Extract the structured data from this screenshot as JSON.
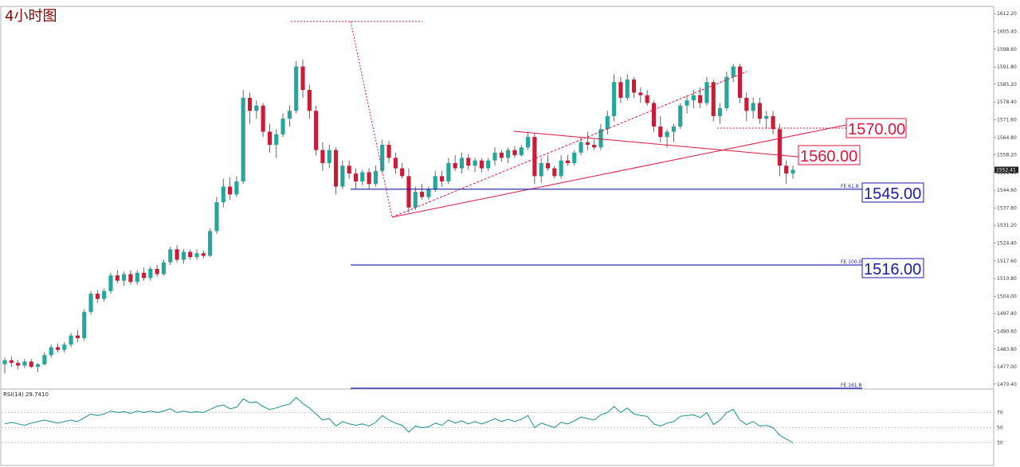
{
  "chart_data": {
    "type": "candlestick",
    "title": "4小时图",
    "ylim": [
      1468.5,
      1615.0
    ],
    "yticks": [
      "1612.20",
      "1605.40",
      "1598.60",
      "1591.80",
      "1585.20",
      "1578.40",
      "1571.60",
      "1564.80",
      "1558.20",
      "1551.40",
      "1544.60",
      "1537.80",
      "1531.20",
      "1524.40",
      "1517.60",
      "1510.80",
      "1504.00",
      "1497.40",
      "1490.60",
      "1483.80",
      "1477.00",
      "1470.40"
    ],
    "current_price": "1552.41",
    "ohlc": [
      [
        1478.0,
        1480.5,
        1474.5,
        1479.5
      ],
      [
        1479.5,
        1481.0,
        1477.0,
        1478.5
      ],
      [
        1478.5,
        1479.5,
        1476.0,
        1477.5
      ],
      [
        1477.5,
        1480.0,
        1476.5,
        1479.0
      ],
      [
        1479.0,
        1480.0,
        1476.5,
        1477.0
      ],
      [
        1477.0,
        1478.5,
        1475.0,
        1478.0
      ],
      [
        1478.0,
        1482.5,
        1477.5,
        1481.5
      ],
      [
        1481.5,
        1485.5,
        1480.5,
        1484.5
      ],
      [
        1484.5,
        1486.0,
        1482.5,
        1483.5
      ],
      [
        1483.5,
        1486.5,
        1482.5,
        1485.5
      ],
      [
        1485.5,
        1490.0,
        1484.5,
        1489.0
      ],
      [
        1489.0,
        1491.0,
        1486.5,
        1488.0
      ],
      [
        1488.0,
        1499.0,
        1487.0,
        1498.0
      ],
      [
        1498.0,
        1506.0,
        1497.0,
        1505.0
      ],
      [
        1505.0,
        1506.5,
        1501.5,
        1503.0
      ],
      [
        1503.0,
        1507.0,
        1502.0,
        1506.0
      ],
      [
        1506.0,
        1513.0,
        1505.0,
        1512.0
      ],
      [
        1512.0,
        1514.0,
        1509.0,
        1510.0
      ],
      [
        1510.0,
        1513.5,
        1508.0,
        1512.5
      ],
      [
        1512.5,
        1514.0,
        1508.5,
        1509.5
      ],
      [
        1509.5,
        1514.0,
        1508.5,
        1513.0
      ],
      [
        1513.0,
        1515.0,
        1510.0,
        1511.0
      ],
      [
        1511.0,
        1515.5,
        1510.0,
        1514.5
      ],
      [
        1514.5,
        1516.0,
        1511.5,
        1512.5
      ],
      [
        1512.5,
        1518.0,
        1512.0,
        1517.0
      ],
      [
        1517.0,
        1523.0,
        1516.0,
        1522.0
      ],
      [
        1522.0,
        1523.5,
        1517.0,
        1518.0
      ],
      [
        1518.0,
        1522.0,
        1516.5,
        1521.0
      ],
      [
        1521.0,
        1522.0,
        1518.0,
        1519.0
      ],
      [
        1519.0,
        1522.0,
        1518.0,
        1520.5
      ],
      [
        1520.5,
        1521.5,
        1518.5,
        1519.5
      ],
      [
        1519.5,
        1530.0,
        1519.0,
        1529.0
      ],
      [
        1529.0,
        1542.0,
        1528.0,
        1540.0
      ],
      [
        1540.0,
        1549.0,
        1538.0,
        1546.0
      ],
      [
        1546.0,
        1549.5,
        1541.0,
        1543.0
      ],
      [
        1543.0,
        1550.0,
        1542.0,
        1548.0
      ],
      [
        1548.0,
        1583.0,
        1547.0,
        1580.0
      ],
      [
        1580.0,
        1582.0,
        1570.0,
        1575.0
      ],
      [
        1575.0,
        1579.0,
        1572.0,
        1577.0
      ],
      [
        1577.0,
        1578.0,
        1565.0,
        1567.0
      ],
      [
        1567.0,
        1570.0,
        1559.0,
        1562.0
      ],
      [
        1562.0,
        1568.0,
        1557.0,
        1566.0
      ],
      [
        1566.0,
        1574.0,
        1565.0,
        1572.0
      ],
      [
        1572.0,
        1577.0,
        1569.0,
        1575.0
      ],
      [
        1575.0,
        1594.0,
        1574.0,
        1592.0
      ],
      [
        1592.0,
        1594.5,
        1580.0,
        1583.0
      ],
      [
        1583.0,
        1585.0,
        1572.0,
        1575.0
      ],
      [
        1575.0,
        1577.0,
        1558.0,
        1560.0
      ],
      [
        1560.0,
        1563.0,
        1552.0,
        1555.0
      ],
      [
        1555.0,
        1562.0,
        1553.0,
        1560.0
      ],
      [
        1560.0,
        1561.0,
        1543.0,
        1546.0
      ],
      [
        1546.0,
        1556.0,
        1545.0,
        1554.0
      ],
      [
        1554.0,
        1556.0,
        1549.0,
        1551.0
      ],
      [
        1551.0,
        1553.0,
        1545.0,
        1548.0
      ],
      [
        1548.0,
        1552.5,
        1546.5,
        1551.5
      ],
      [
        1551.5,
        1553.0,
        1545.0,
        1547.0
      ],
      [
        1547.0,
        1554.0,
        1546.0,
        1552.0
      ],
      [
        1552.0,
        1564.0,
        1551.0,
        1562.0
      ],
      [
        1562.0,
        1563.5,
        1555.0,
        1557.0
      ],
      [
        1557.0,
        1559.0,
        1551.0,
        1553.0
      ],
      [
        1553.0,
        1555.0,
        1549.0,
        1550.0
      ],
      [
        1550.0,
        1553.0,
        1536.0,
        1538.0
      ],
      [
        1538.0,
        1546.0,
        1537.0,
        1544.0
      ],
      [
        1544.0,
        1547.0,
        1541.0,
        1542.0
      ],
      [
        1542.0,
        1546.0,
        1541.0,
        1545.0
      ],
      [
        1545.0,
        1552.0,
        1544.0,
        1550.0
      ],
      [
        1550.0,
        1552.0,
        1546.0,
        1548.0
      ],
      [
        1548.0,
        1557.0,
        1547.0,
        1555.0
      ],
      [
        1555.0,
        1558.0,
        1552.0,
        1553.0
      ],
      [
        1553.0,
        1559.0,
        1551.0,
        1557.0
      ],
      [
        1557.0,
        1558.5,
        1552.5,
        1554.0
      ],
      [
        1554.0,
        1557.0,
        1551.5,
        1556.0
      ],
      [
        1556.0,
        1557.0,
        1551.5,
        1553.0
      ],
      [
        1553.0,
        1557.0,
        1552.0,
        1556.0
      ],
      [
        1556.0,
        1561.0,
        1554.0,
        1559.0
      ],
      [
        1559.0,
        1560.0,
        1555.5,
        1557.0
      ],
      [
        1557.0,
        1561.0,
        1555.0,
        1560.0
      ],
      [
        1560.0,
        1561.5,
        1557.0,
        1558.0
      ],
      [
        1558.0,
        1562.0,
        1557.5,
        1561.0
      ],
      [
        1561.0,
        1567.0,
        1560.0,
        1565.0
      ],
      [
        1565.0,
        1566.5,
        1547.0,
        1550.0
      ],
      [
        1550.0,
        1557.0,
        1547.5,
        1555.0
      ],
      [
        1555.0,
        1558.0,
        1552.0,
        1553.0
      ],
      [
        1553.0,
        1554.0,
        1549.0,
        1550.0
      ],
      [
        1550.0,
        1558.0,
        1549.0,
        1556.0
      ],
      [
        1556.0,
        1558.0,
        1554.0,
        1555.0
      ],
      [
        1555.0,
        1560.0,
        1554.0,
        1559.0
      ],
      [
        1559.0,
        1565.0,
        1558.0,
        1563.0
      ],
      [
        1563.0,
        1567.0,
        1560.0,
        1562.0
      ],
      [
        1562.0,
        1564.0,
        1560.0,
        1561.0
      ],
      [
        1561.0,
        1570.0,
        1560.0,
        1568.0
      ],
      [
        1568.0,
        1575.0,
        1566.0,
        1573.0
      ],
      [
        1573.0,
        1589.0,
        1571.0,
        1586.0
      ],
      [
        1586.0,
        1588.0,
        1578.0,
        1580.0
      ],
      [
        1580.0,
        1589.0,
        1579.0,
        1587.0
      ],
      [
        1587.0,
        1588.0,
        1580.0,
        1582.0
      ],
      [
        1582.0,
        1584.0,
        1578.0,
        1581.0
      ],
      [
        1581.0,
        1583.0,
        1577.0,
        1578.0
      ],
      [
        1578.0,
        1579.0,
        1567.0,
        1569.0
      ],
      [
        1569.0,
        1573.0,
        1563.0,
        1565.0
      ],
      [
        1565.0,
        1568.0,
        1561.0,
        1567.0
      ],
      [
        1567.0,
        1570.0,
        1563.0,
        1569.0
      ],
      [
        1569.0,
        1578.0,
        1568.0,
        1577.0
      ],
      [
        1577.0,
        1581.0,
        1574.0,
        1579.0
      ],
      [
        1579.0,
        1583.0,
        1576.0,
        1581.0
      ],
      [
        1581.0,
        1584.0,
        1576.0,
        1578.0
      ],
      [
        1578.0,
        1588.0,
        1577.0,
        1586.0
      ],
      [
        1586.0,
        1587.0,
        1571.0,
        1573.0
      ],
      [
        1573.0,
        1578.0,
        1570.0,
        1576.0
      ],
      [
        1576.0,
        1590.0,
        1575.0,
        1588.0
      ],
      [
        1588.0,
        1593.0,
        1586.0,
        1592.0
      ],
      [
        1592.0,
        1593.0,
        1578.0,
        1580.0
      ],
      [
        1580.0,
        1582.0,
        1571.0,
        1575.0
      ],
      [
        1575.0,
        1580.0,
        1572.0,
        1578.0
      ],
      [
        1578.0,
        1580.0,
        1570.0,
        1572.0
      ],
      [
        1572.0,
        1575.0,
        1568.0,
        1573.0
      ],
      [
        1573.0,
        1575.0,
        1566.0,
        1568.0
      ],
      [
        1568.0,
        1570.0,
        1550.0,
        1554.0
      ],
      [
        1554.0,
        1556.0,
        1547.0,
        1551.0
      ],
      [
        1551.0,
        1554.0,
        1549.0,
        1552.41
      ]
    ],
    "rsi_label": "RSI(14) 29.7410",
    "rsi_levels": [
      "70",
      "50",
      "30"
    ],
    "rsi_values": [
      55,
      57,
      55,
      53,
      56,
      58,
      60,
      58,
      56,
      58,
      60,
      58,
      63,
      68,
      66,
      68,
      72,
      70,
      71,
      69,
      72,
      70,
      72,
      70,
      72,
      75,
      70,
      72,
      70,
      71,
      70,
      74,
      78,
      80,
      75,
      77,
      88,
      83,
      84,
      78,
      74,
      76,
      79,
      81,
      90,
      82,
      76,
      68,
      60,
      62,
      52,
      58,
      55,
      53,
      55,
      52,
      57,
      66,
      60,
      56,
      53,
      44,
      52,
      50,
      51,
      56,
      53,
      60,
      56,
      59,
      55,
      58,
      55,
      58,
      62,
      58,
      61,
      58,
      61,
      66,
      50,
      56,
      53,
      50,
      57,
      55,
      59,
      64,
      62,
      60,
      67,
      70,
      78,
      70,
      76,
      68,
      66,
      65,
      55,
      52,
      56,
      58,
      65,
      66,
      67,
      63,
      70,
      54,
      60,
      70,
      74,
      60,
      54,
      58,
      52,
      53,
      50,
      40,
      35,
      30
    ],
    "annotations": {
      "level_1570": "1570.00",
      "level_1560": "1560.00",
      "level_1545": "1545.00",
      "level_1516": "1516.00",
      "fe_618": "FE 61.8",
      "fe_100": "FE 100.0",
      "fe_1618": "FE 161.8"
    },
    "colors": {
      "bull": "#26a69a",
      "bear": "#c71d36",
      "wick": "#404040",
      "trend": "#e0143c",
      "fe_line": "#1a1ab0",
      "rsi_line": "#1a8c8c"
    }
  }
}
